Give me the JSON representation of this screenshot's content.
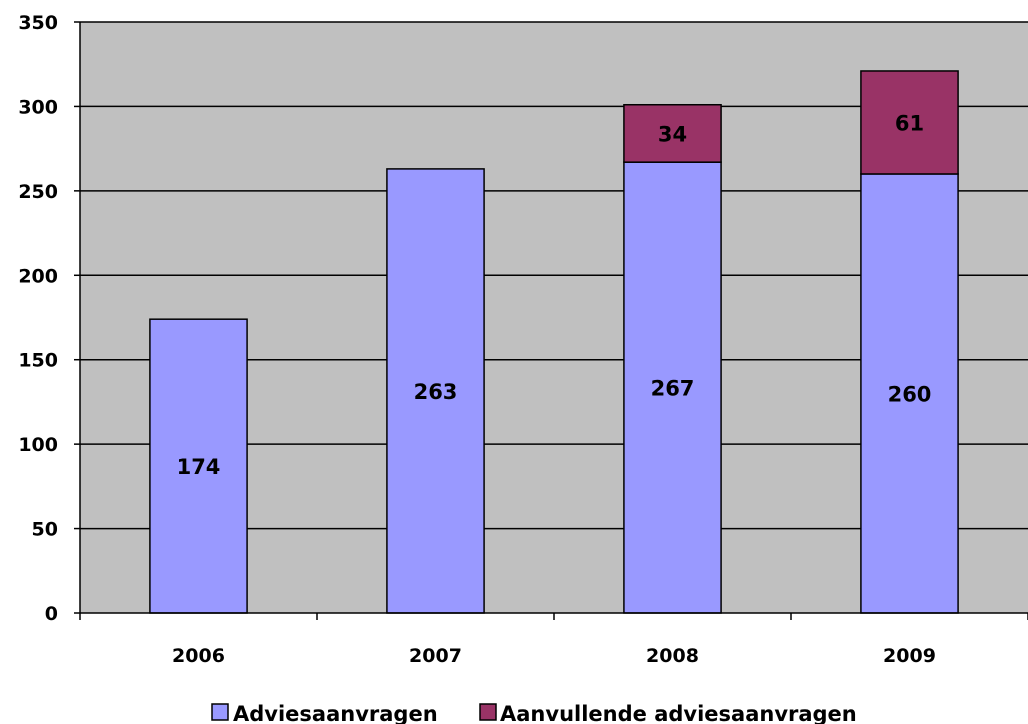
{
  "chart_data": {
    "type": "bar",
    "stacked": true,
    "categories": [
      "2006",
      "2007",
      "2008",
      "2009"
    ],
    "series": [
      {
        "name": "Adviesaanvragen",
        "values": [
          174,
          263,
          267,
          260
        ],
        "labels": [
          "174",
          "263",
          "267",
          "260"
        ],
        "color": "#9999ff"
      },
      {
        "name": "Aanvullende adviesaanvragen",
        "values": [
          0,
          0,
          34,
          61
        ],
        "labels": [
          "",
          "",
          "34",
          "61"
        ],
        "color": "#993366"
      }
    ],
    "title": "",
    "xlabel": "",
    "ylabel": "",
    "ylim": [
      0,
      350
    ],
    "yticks": [
      "0",
      "50",
      "100",
      "150",
      "200",
      "250",
      "300",
      "350"
    ],
    "grid": true,
    "legend_position": "bottom",
    "plot_background": "#c0c0c0"
  }
}
